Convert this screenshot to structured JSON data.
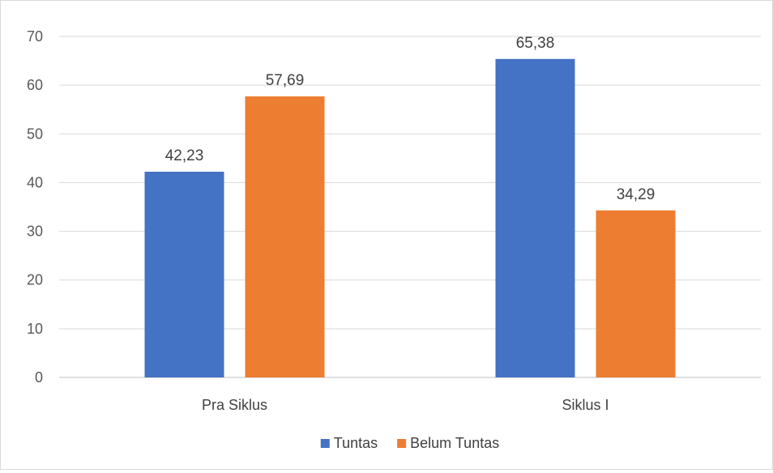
{
  "chart_data": {
    "type": "bar",
    "title": "",
    "xlabel": "",
    "ylabel": "",
    "categories": [
      "Pra Siklus",
      "Siklus  I"
    ],
    "series": [
      {
        "name": "Tuntas",
        "values": [
          42.23,
          65.38
        ],
        "labels": [
          "42,23",
          "65,38"
        ],
        "color": "#4472c4"
      },
      {
        "name": "Belum Tuntas",
        "values": [
          57.69,
          34.29
        ],
        "labels": [
          "57,69",
          "34,29"
        ],
        "color": "#ed7d31"
      }
    ],
    "ylim": [
      0,
      70
    ],
    "yticks": [
      0,
      10,
      20,
      30,
      40,
      50,
      60,
      70
    ],
    "grid": true,
    "legend": "bottom"
  }
}
